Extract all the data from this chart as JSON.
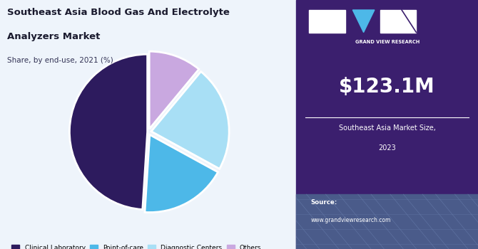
{
  "title_line1": "Southeast Asia Blood Gas And Electrolyte",
  "title_line2": "Analyzers Market",
  "subtitle": "Share, by end-use, 2021 (%)",
  "slices": [
    {
      "label": "Clinical Laboratory",
      "value": 49,
      "color": "#2d1b5e"
    },
    {
      "label": "Point-of-care",
      "value": 18,
      "color": "#4db8e8"
    },
    {
      "label": "Diagnostic Centers",
      "value": 22,
      "color": "#a8dff5"
    },
    {
      "label": "Others",
      "value": 11,
      "color": "#c9a8e0"
    }
  ],
  "right_panel_bg": "#3b1f6e",
  "market_value": "$123.1M",
  "market_label_line1": "Southeast Asia Market Size,",
  "market_label_line2": "2023",
  "source_text": "Source:",
  "source_url": "www.grandviewresearch.com",
  "left_bg": "#eef4fb",
  "startangle": 90,
  "explode": [
    0.01,
    0.04,
    0.04,
    0.04
  ]
}
